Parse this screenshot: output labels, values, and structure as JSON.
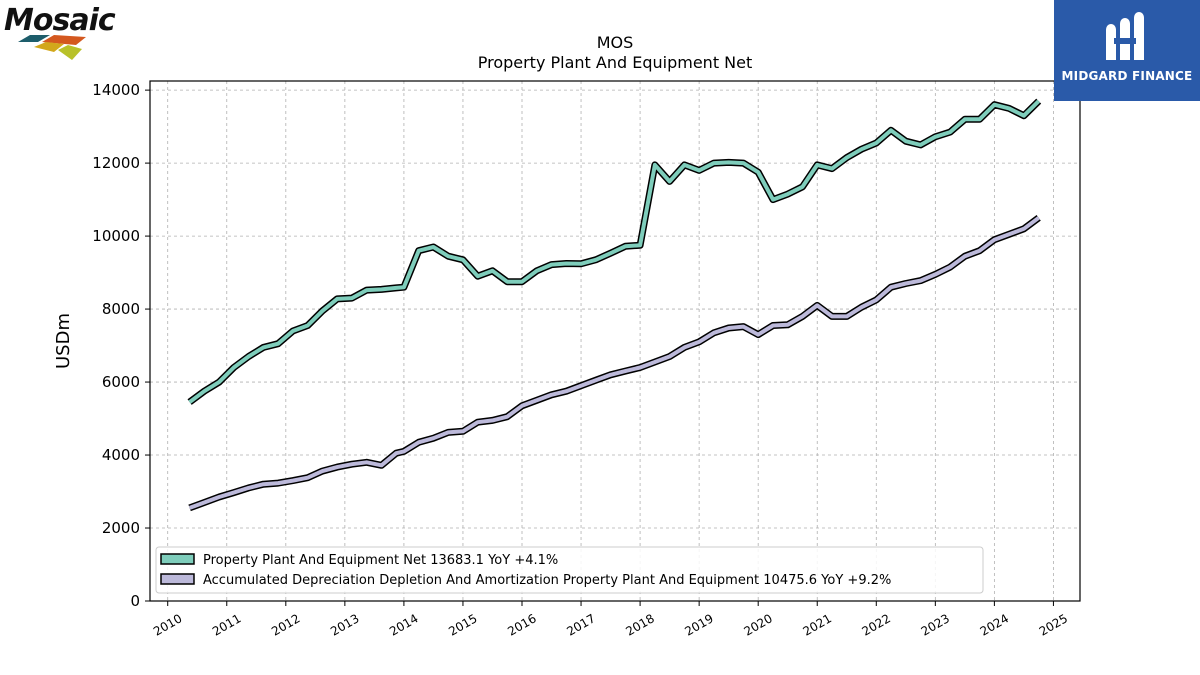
{
  "logos": {
    "left_text": "Mosaic",
    "right_text": "MIDGARD FINANCE"
  },
  "chart_data": {
    "type": "line",
    "title": "MOS",
    "subtitle": "Property Plant And Equipment Net",
    "xlabel": "",
    "ylabel": "USDm",
    "xlim": [
      2009.7,
      2025.45
    ],
    "ylim": [
      0,
      14250
    ],
    "xticks": [
      2010,
      2011,
      2012,
      2013,
      2014,
      2015,
      2016,
      2017,
      2018,
      2019,
      2020,
      2021,
      2022,
      2023,
      2024,
      2025
    ],
    "yticks": [
      0,
      2000,
      4000,
      6000,
      8000,
      10000,
      12000,
      14000
    ],
    "grid": true,
    "legend_position": "lower-left",
    "series": [
      {
        "name": "Property Plant And Equipment Net",
        "legend_label": "Property Plant And Equipment Net  13683.1 YoY +4.1%",
        "color": "#7ecdbb",
        "x": [
          2010.37,
          2010.62,
          2010.87,
          2011.12,
          2011.37,
          2011.62,
          2011.87,
          2012.12,
          2012.37,
          2012.62,
          2012.87,
          2013.12,
          2013.37,
          2013.62,
          2013.87,
          2014.0,
          2014.25,
          2014.5,
          2014.75,
          2015.0,
          2015.25,
          2015.5,
          2015.75,
          2016.0,
          2016.25,
          2016.5,
          2016.75,
          2017.0,
          2017.25,
          2017.5,
          2017.75,
          2018.0,
          2018.25,
          2018.5,
          2018.75,
          2019.0,
          2019.25,
          2019.5,
          2019.75,
          2020.0,
          2020.25,
          2020.5,
          2020.75,
          2021.0,
          2021.25,
          2021.5,
          2021.75,
          2022.0,
          2022.25,
          2022.5,
          2022.75,
          2023.0,
          2023.25,
          2023.5,
          2023.75,
          2024.0,
          2024.25,
          2024.5,
          2024.75
        ],
        "values": [
          5450,
          5750,
          6000,
          6400,
          6700,
          6950,
          7050,
          7400,
          7550,
          7950,
          8280,
          8300,
          8520,
          8540,
          8580,
          8600,
          9600,
          9700,
          9450,
          9350,
          8900,
          9050,
          8750,
          8750,
          9050,
          9220,
          9250,
          9240,
          9350,
          9530,
          9720,
          9750,
          11950,
          11500,
          11950,
          11800,
          12000,
          12020,
          12000,
          11750,
          11000,
          11150,
          11350,
          11950,
          11850,
          12150,
          12380,
          12550,
          12900,
          12600,
          12500,
          12720,
          12850,
          13200,
          13200,
          13600,
          13500,
          13300,
          13700
        ]
      },
      {
        "name": "Accumulated Depreciation Depletion And Amortization Property Plant And Equipment",
        "legend_label": "Accumulated Depreciation Depletion And Amortization Property Plant And Equipment  10475.6 YoY +9.2%",
        "color": "#bcb9da",
        "x": [
          2010.37,
          2010.62,
          2010.87,
          2011.12,
          2011.37,
          2011.62,
          2011.87,
          2012.12,
          2012.37,
          2012.62,
          2012.87,
          2013.12,
          2013.37,
          2013.62,
          2013.87,
          2014.0,
          2014.25,
          2014.5,
          2014.75,
          2015.0,
          2015.25,
          2015.5,
          2015.75,
          2016.0,
          2016.25,
          2016.5,
          2016.75,
          2017.0,
          2017.25,
          2017.5,
          2017.75,
          2018.0,
          2018.25,
          2018.5,
          2018.75,
          2019.0,
          2019.25,
          2019.5,
          2019.75,
          2020.0,
          2020.25,
          2020.5,
          2020.75,
          2021.0,
          2021.25,
          2021.5,
          2021.75,
          2022.0,
          2022.25,
          2022.5,
          2022.75,
          2023.0,
          2023.25,
          2023.5,
          2023.75,
          2024.0,
          2024.25,
          2024.5,
          2024.75
        ],
        "values": [
          2550,
          2700,
          2850,
          2970,
          3100,
          3200,
          3230,
          3300,
          3380,
          3560,
          3670,
          3750,
          3800,
          3720,
          4050,
          4100,
          4350,
          4460,
          4620,
          4650,
          4900,
          4950,
          5050,
          5350,
          5500,
          5650,
          5750,
          5900,
          6050,
          6200,
          6300,
          6400,
          6550,
          6700,
          6950,
          7100,
          7350,
          7480,
          7520,
          7300,
          7550,
          7570,
          7800,
          8100,
          7800,
          7800,
          8050,
          8250,
          8600,
          8700,
          8780,
          8950,
          9150,
          9450,
          9600,
          9900,
          10050,
          10200,
          10500
        ]
      }
    ]
  }
}
